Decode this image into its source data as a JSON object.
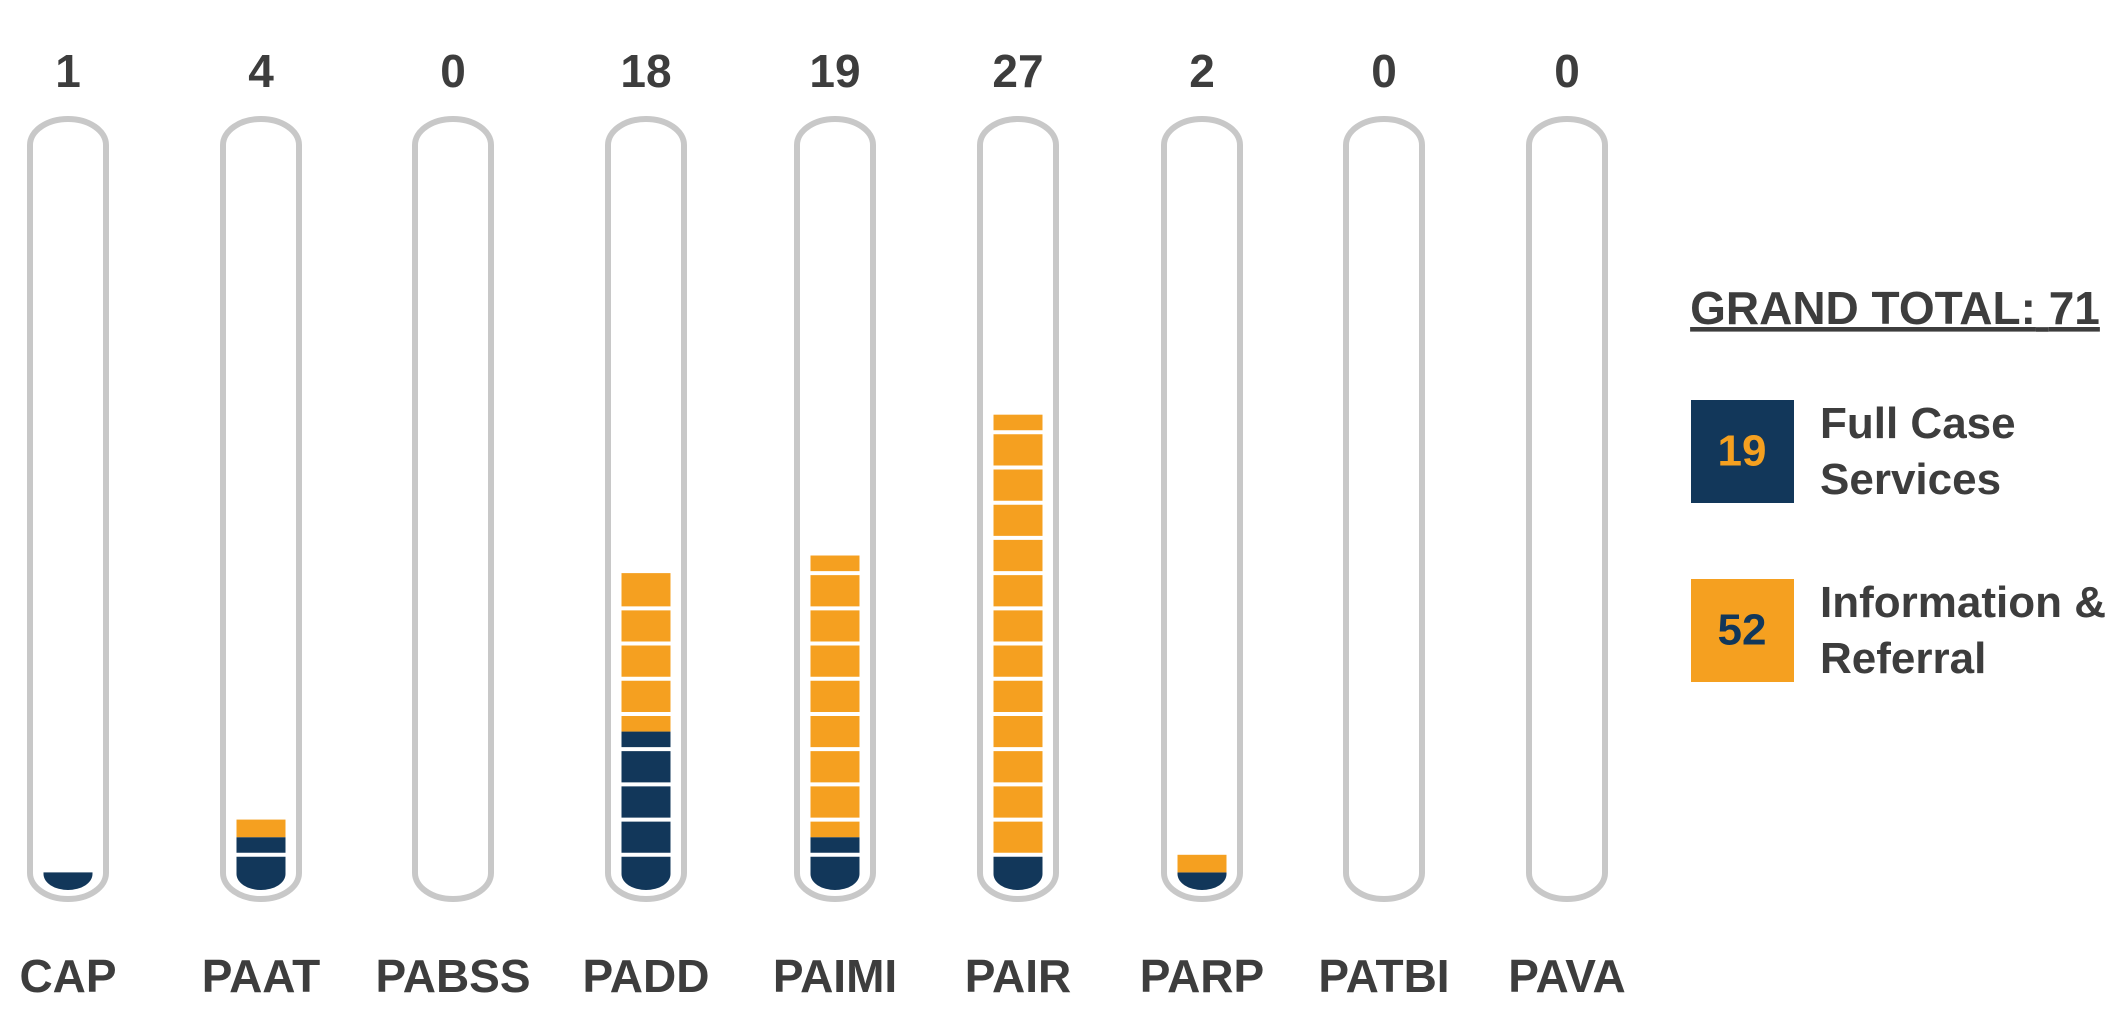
{
  "chart_data": {
    "type": "tube-stack",
    "categories": [
      "CAP",
      "PAAT",
      "PABSS",
      "PADD",
      "PAIMI",
      "PAIR",
      "PARP",
      "PATBI",
      "PAVA"
    ],
    "totals": [
      1,
      4,
      0,
      18,
      19,
      27,
      2,
      0,
      0
    ],
    "series": [
      {
        "name": "Full Case Services",
        "color": "#12375a",
        "total": 19,
        "values": [
          1,
          3,
          0,
          9,
          3,
          2,
          1,
          0,
          0
        ]
      },
      {
        "name": "Information & Referral",
        "color": "#f5a020",
        "total": 52,
        "values": [
          0,
          1,
          0,
          9,
          16,
          25,
          1,
          0,
          0
        ]
      }
    ],
    "ylim": [
      0,
      43
    ],
    "grand_total_label": "GRAND TOTAL:",
    "grand_total": 71
  }
}
